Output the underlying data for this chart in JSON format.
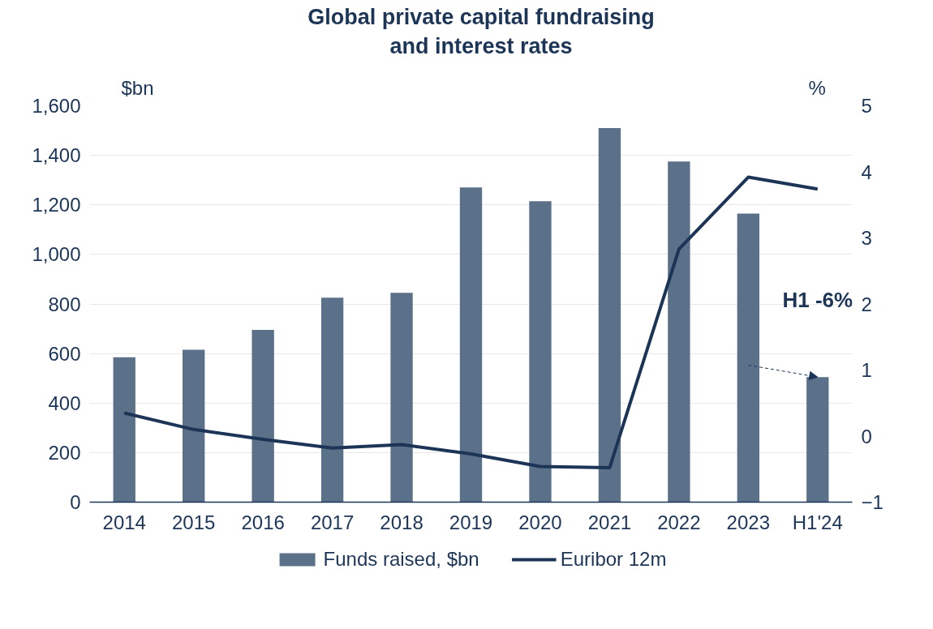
{
  "chart_data": {
    "type": "bar",
    "title": "Global private capital fundraising and interest rates",
    "ylabel": "$bn",
    "y2label": "%",
    "categories": [
      "2014",
      "2015",
      "2016",
      "2017",
      "2018",
      "2019",
      "2020",
      "2021",
      "2022",
      "2023",
      "H1'24"
    ],
    "series": [
      {
        "name": "Funds raised, $bn",
        "color": "#5b7089",
        "values": [
          585,
          615,
          695,
          825,
          845,
          1270,
          1215,
          1510,
          1375,
          1165,
          505
        ]
      },
      {
        "name": "Euribor 12m",
        "type": "line",
        "axis": "y2",
        "color": "#1c3557",
        "values": [
          0.35,
          0.1,
          -0.05,
          -0.18,
          -0.13,
          -0.27,
          -0.46,
          -0.48,
          2.83,
          3.92,
          3.74
        ]
      }
    ],
    "ylim": [
      0,
      1600
    ],
    "yticks": [
      0,
      200,
      400,
      600,
      800,
      {
        "value": 1000,
        "label": "1,000"
      },
      {
        "value": 1200,
        "label": "1,200"
      },
      {
        "value": 1400,
        "label": "1,400"
      },
      {
        "value": 1600,
        "label": "1,600"
      }
    ],
    "y2lim": [
      -1,
      5
    ],
    "y2ticks": [
      -1,
      0,
      1,
      2,
      3,
      4,
      5
    ],
    "annotations": [
      "H1 -6%"
    ],
    "grid": "y",
    "legend": "bottom",
    "line_style": "solid",
    "marker": "none"
  }
}
